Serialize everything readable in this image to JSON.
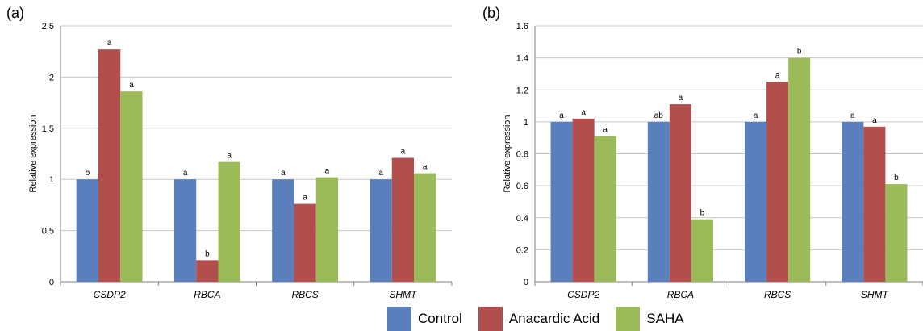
{
  "chart_data": [
    {
      "type": "bar",
      "panel": "(a)",
      "ylabel": "Relative expression",
      "categories": [
        "CSDP2",
        "RBCA",
        "RBCS",
        "SHMT"
      ],
      "ylim": [
        0,
        2.5
      ],
      "yticks": [
        "0",
        "0.5",
        "1",
        "1.5",
        "2",
        "2.5"
      ],
      "grid": true,
      "series": [
        {
          "name": "Control",
          "values": [
            1.0,
            1.0,
            1.0,
            1.0
          ],
          "labels": [
            "b",
            "a",
            "a",
            "a"
          ]
        },
        {
          "name": "Anacardic Acid",
          "values": [
            2.27,
            0.21,
            0.76,
            1.21
          ],
          "labels": [
            "a",
            "b",
            "a",
            "a"
          ]
        },
        {
          "name": "SAHA",
          "values": [
            1.86,
            1.17,
            1.02,
            1.06
          ],
          "labels": [
            "a",
            "a",
            "a",
            "a"
          ]
        }
      ]
    },
    {
      "type": "bar",
      "panel": "(b)",
      "ylabel": "Relative expression",
      "categories": [
        "CSDP2",
        "RBCA",
        "RBCS",
        "SHMT"
      ],
      "ylim": [
        0,
        1.6
      ],
      "yticks": [
        "0",
        "0.2",
        "0.4",
        "0.6",
        "0.8",
        "1",
        "1.2",
        "1.4",
        "1.6"
      ],
      "grid": true,
      "series": [
        {
          "name": "Control",
          "values": [
            1.0,
            1.0,
            1.0,
            1.0
          ],
          "labels": [
            "a",
            "ab",
            "a",
            "a"
          ]
        },
        {
          "name": "Anacardic Acid",
          "values": [
            1.02,
            1.11,
            1.25,
            0.97
          ],
          "labels": [
            "a",
            "a",
            "a",
            "a"
          ]
        },
        {
          "name": "SAHA",
          "values": [
            0.91,
            0.39,
            1.4,
            0.61
          ],
          "labels": [
            "a",
            "b",
            "b",
            "b"
          ]
        }
      ]
    }
  ],
  "legend": {
    "placement": "bottom-center",
    "items": [
      {
        "name": "Control",
        "color": "#5b7fbd"
      },
      {
        "name": "Anacardic Acid",
        "color": "#b24e4c"
      },
      {
        "name": "SAHA",
        "color": "#9bbb59"
      }
    ]
  },
  "panel_labels": {
    "a": "(a)",
    "b": "(b)"
  }
}
